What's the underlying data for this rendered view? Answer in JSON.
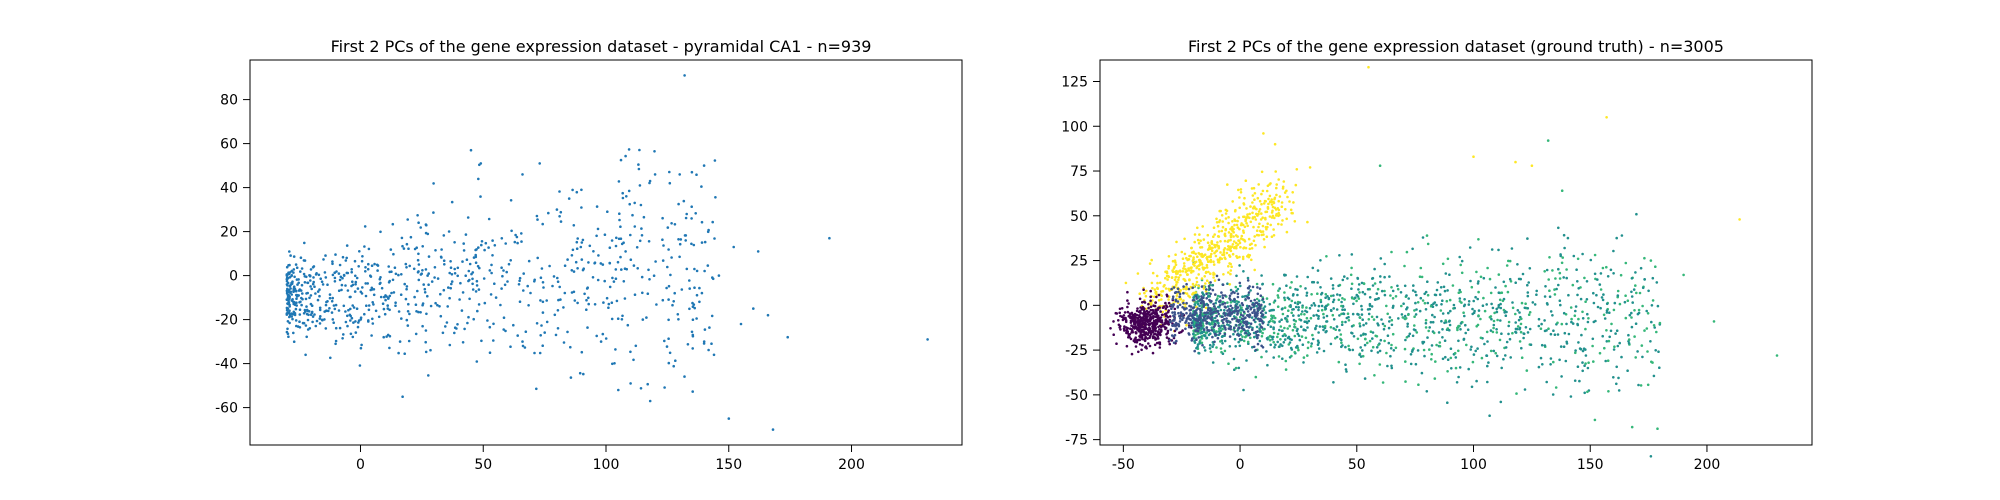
{
  "figure": {
    "background": "#ffffff"
  },
  "chart_data": [
    {
      "type": "scatter",
      "title": "First 2 PCs of the gene expression dataset - pyramidal CA1 - n=939",
      "xlabel": "",
      "ylabel": "",
      "xlim": [
        -45,
        245
      ],
      "ylim": [
        -77,
        98
      ],
      "xticks": [
        0,
        50,
        100,
        150,
        200
      ],
      "yticks": [
        -60,
        -40,
        -20,
        0,
        20,
        40,
        60,
        80
      ],
      "grid": false,
      "n_points": 939,
      "colors": {
        "main": "#1f77b4"
      },
      "series": [
        {
          "color": "#1f77b4",
          "points": [
            [
              132,
              91
            ],
            [
              45,
              57
            ],
            [
              49,
              51
            ],
            [
              66,
              46
            ],
            [
              73,
              51
            ],
            [
              120,
              46
            ],
            [
              130,
              46
            ],
            [
              135,
              47
            ],
            [
              126,
              42
            ],
            [
              191,
              17
            ],
            [
              152,
              13
            ],
            [
              162,
              11
            ],
            [
              150,
              -65
            ],
            [
              168,
              -70
            ],
            [
              231,
              -29
            ],
            [
              118,
              -57
            ],
            [
              105,
              -52
            ],
            [
              110,
              -49
            ],
            [
              90,
              39
            ],
            [
              85,
              35
            ],
            [
              80,
              30
            ],
            [
              160,
              -15
            ],
            [
              166,
              -18
            ],
            [
              174,
              -28
            ],
            [
              155,
              -22
            ],
            [
              140,
              -30
            ],
            [
              144,
              -36
            ],
            [
              98,
              -30
            ],
            [
              115,
              -20
            ],
            [
              128,
              -8
            ],
            [
              136,
              3
            ],
            [
              146,
              0
            ],
            [
              108,
              11
            ]
          ]
        }
      ]
    },
    {
      "type": "scatter",
      "title": "First 2 PCs of the gene expression dataset (ground truth) - n=3005",
      "xlabel": "",
      "ylabel": "",
      "xlim": [
        -60,
        245
      ],
      "ylim": [
        -78,
        137
      ],
      "xticks": [
        -50,
        0,
        50,
        100,
        150,
        200
      ],
      "yticks": [
        -75,
        -50,
        -25,
        0,
        25,
        50,
        75,
        100,
        125
      ],
      "grid": false,
      "n_points": 3005,
      "colors": {
        "cluster_a": "#440154",
        "cluster_b": "#3b528b",
        "cluster_c": "#21908d",
        "cluster_d": "#35b779",
        "cluster_e": "#fde725"
      },
      "series": [
        {
          "color": "#fde725",
          "points": [
            [
              55,
              133
            ],
            [
              157,
              105
            ],
            [
              10,
              96
            ],
            [
              15,
              90
            ],
            [
              214,
              48
            ],
            [
              100,
              83
            ],
            [
              118,
              80
            ],
            [
              125,
              78
            ],
            [
              30,
              77
            ]
          ]
        },
        {
          "color": "#35b779",
          "points": [
            [
              60,
              78
            ],
            [
              132,
              92
            ],
            [
              138,
              64
            ],
            [
              230,
              -28
            ],
            [
              203,
              -9
            ],
            [
              176,
              25
            ],
            [
              168,
              -68
            ],
            [
              152,
              -64
            ],
            [
              158,
              -20
            ],
            [
              190,
              17
            ],
            [
              162,
              8
            ],
            [
              148,
              2
            ]
          ]
        },
        {
          "color": "#21908d",
          "points": [
            [
              65,
              -35
            ],
            [
              40,
              -43
            ],
            [
              80,
              -48
            ]
          ]
        },
        {
          "color": "#440154",
          "points": [
            [
              -45,
              -10
            ],
            [
              -40,
              -13
            ],
            [
              -35,
              -16
            ]
          ]
        }
      ]
    }
  ]
}
